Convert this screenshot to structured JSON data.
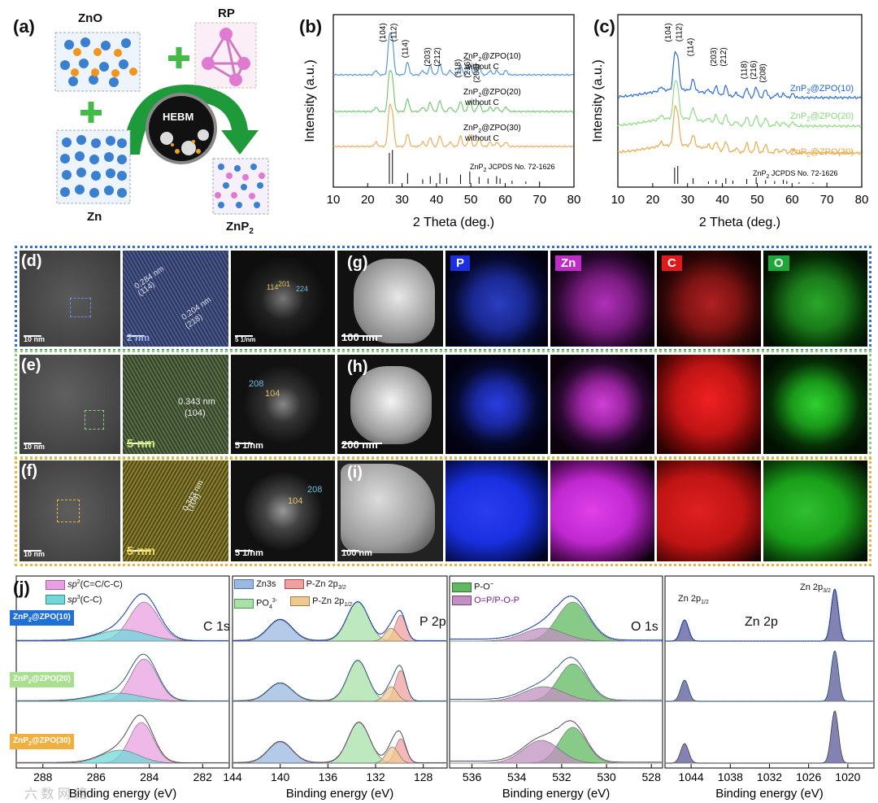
{
  "panel_a": {
    "label": "(a)",
    "zno": "ZnO",
    "rp": "RP",
    "hebm": "HEBM",
    "zn": "Zn",
    "znp2_main": "ZnP",
    "znp2_sub": "2"
  },
  "panel_b": {
    "label": "(b)",
    "ylabel": "Intensity (a.u.)",
    "xlabel": "2 Theta (deg.)",
    "xticks": [
      "10",
      "20",
      "30",
      "40",
      "50",
      "60",
      "70",
      "80"
    ],
    "peaks": [
      "(104)",
      "(112)",
      "(114)",
      "(203)",
      "(212)",
      "(118)",
      "(216)",
      "(208)"
    ],
    "series": [
      {
        "main": "ZnP",
        "sub": "2",
        "rest": "@ZPO(10)",
        "line2": "without C",
        "color": "#4a90d9"
      },
      {
        "main": "ZnP",
        "sub": "2",
        "rest": "@ZPO(20)",
        "line2": "without C",
        "color": "#6cc46c"
      },
      {
        "main": "ZnP",
        "sub": "2",
        "rest": "@ZPO(30)",
        "line2": "without C",
        "color": "#e8a84a"
      }
    ],
    "ref": "ZnP",
    "ref_sub": "2",
    "ref_rest": " JCPDS No. 72-1626"
  },
  "panel_c": {
    "label": "(c)",
    "ylabel": "Intensity (a.u.)",
    "xlabel": "2 Theta (deg.)",
    "xticks": [
      "10",
      "20",
      "30",
      "40",
      "50",
      "60",
      "70",
      "80"
    ],
    "peaks": [
      "(104)",
      "(112)",
      "(114)",
      "(203)",
      "(212)",
      "(118)",
      "(216)",
      "(208)"
    ],
    "series": [
      {
        "main": "ZnP",
        "sub": "2",
        "rest": "@ZPO(10)",
        "color": "#1f63d0"
      },
      {
        "main": "ZnP",
        "sub": "2",
        "rest": "@ZPO(20)",
        "color": "#88d97a"
      },
      {
        "main": "ZnP",
        "sub": "2",
        "rest": "@ZPO(30)",
        "color": "#e8a53a"
      }
    ],
    "ref": "ZnP",
    "ref_sub": "2",
    "ref_rest": " JCPDS No. 72-1626"
  },
  "panel_d": {
    "label": "(d)",
    "scale1": "10 nm",
    "scale2": "2 nm",
    "scale3": "5 1/nm",
    "d1": "0.284 nm",
    "h1": "(114)",
    "d2": "0.204 nm",
    "h2": "(218)",
    "f1": "114",
    "f2": "201",
    "f3": "224"
  },
  "panel_e": {
    "label": "(e)",
    "scale1": "10 nm",
    "scale2": "5 nm",
    "scale3": "5 1/nm",
    "d1": "0.343 nm",
    "h1": "(104)",
    "f1": "208",
    "f2": "104"
  },
  "panel_f": {
    "label": "(f)",
    "scale1": "10 nm",
    "scale2": "5 nm",
    "scale3": "5 1/nm",
    "d1": "0.343 nm",
    "h1": "(104)",
    "f1": "104",
    "f2": "208"
  },
  "panel_g": {
    "label": "(g)",
    "scale": "100 nm",
    "p": "P",
    "zn": "Zn",
    "c": "C",
    "o": "O"
  },
  "panel_h": {
    "label": "(h)",
    "scale": "200 nm"
  },
  "panel_i": {
    "label": "(i)",
    "scale": "100 nm"
  },
  "panel_j": {
    "label": "(j)",
    "c1s_title": "C 1s",
    "p2p_title": "P 2p",
    "o1s_title": "O 1s",
    "zn2p_title": "Zn 2p",
    "zn_p12": "Zn 2p",
    "zn_p12_sub": "1/2",
    "zn_p32": "Zn 2p",
    "zn_p32_sub": "3/2",
    "legend_c": [
      "sp",
      "2",
      "(C=C/C-C)",
      "sp",
      "3",
      "(C-C)"
    ],
    "legend_p": [
      "Zn3s",
      "P-Zn 2p",
      "3/2",
      "PO",
      "4",
      "3-",
      "P-Zn 2p",
      "1/2"
    ],
    "legend_o": [
      "P-O",
      "−",
      "O=P/P-O-P"
    ],
    "xlabel": "Binding energy (eV)",
    "c_ticks": [
      "288",
      "286",
      "284",
      "282"
    ],
    "p_ticks": [
      "144",
      "140",
      "136",
      "132",
      "128"
    ],
    "o_ticks": [
      "536",
      "534",
      "532",
      "530",
      "528"
    ],
    "zn_ticks": [
      "1044",
      "1038",
      "1032",
      "1026",
      "1020"
    ],
    "rows": [
      {
        "main": "ZnP",
        "sub": "2",
        "rest": "@ZPO(10)",
        "bg": "#1f6fd6"
      },
      {
        "main": "ZnP",
        "sub": "2",
        "rest": "@ZPO(20)",
        "bg": "#a8e090"
      },
      {
        "main": "ZnP",
        "sub": "2",
        "rest": "@ZPO(30)",
        "bg": "#f0b040"
      }
    ],
    "watermark": "六 数 网 络"
  }
}
